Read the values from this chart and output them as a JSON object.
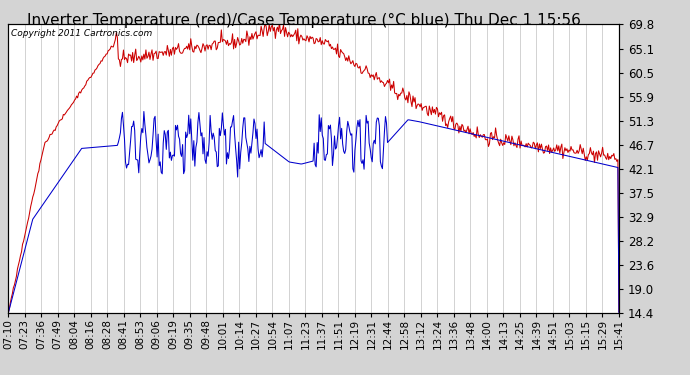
{
  "title": "Inverter Temperature (red)/Case Temperature (°C blue) Thu Dec 1 15:56",
  "copyright": "Copyright 2011 Cartronics.com",
  "yticks": [
    14.4,
    19.0,
    23.6,
    28.2,
    32.9,
    37.5,
    42.1,
    46.7,
    51.3,
    55.9,
    60.5,
    65.1,
    69.8
  ],
  "ymin": 14.4,
  "ymax": 69.8,
  "bg_color": "#d4d4d4",
  "plot_bg_color": "#ffffff",
  "grid_color": "#b0b0b0",
  "red_color": "#cc0000",
  "blue_color": "#0000cc",
  "title_fontsize": 11,
  "copyright_fontsize": 6.5,
  "tick_fontsize": 7.5,
  "xtick_labels": [
    "07:10",
    "07:23",
    "07:36",
    "07:49",
    "08:04",
    "08:16",
    "08:28",
    "08:41",
    "08:53",
    "09:06",
    "09:19",
    "09:35",
    "09:48",
    "10:01",
    "10:14",
    "10:27",
    "10:54",
    "11:07",
    "11:23",
    "11:37",
    "11:51",
    "12:19",
    "12:31",
    "12:44",
    "12:58",
    "13:12",
    "13:24",
    "13:36",
    "13:48",
    "14:00",
    "14:13",
    "14:25",
    "14:39",
    "14:51",
    "15:03",
    "15:15",
    "15:29",
    "15:41"
  ]
}
